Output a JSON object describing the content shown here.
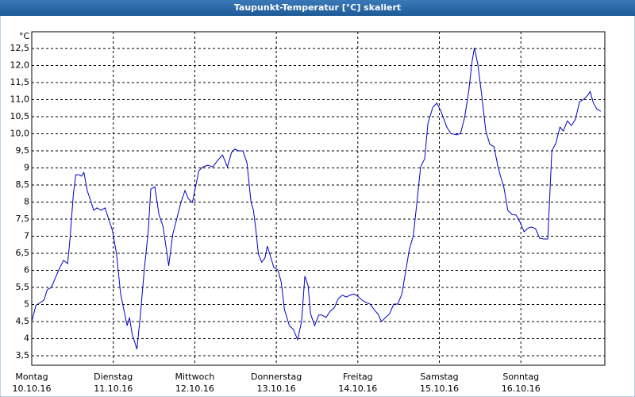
{
  "chart_data": {
    "type": "line",
    "title": "Taupunkt-Temperatur [°C] skaliert",
    "y_unit": "°C",
    "color": "#0000c8",
    "grid": true,
    "xlim": [
      0,
      7.03
    ],
    "ylim": [
      3.22,
      12.99
    ],
    "xticks": [
      {
        "value": 0,
        "label": "Montag",
        "date": "10.10.16"
      },
      {
        "value": 1,
        "label": "Dienstag",
        "date": "11.10.16"
      },
      {
        "value": 2,
        "label": "Mittwoch",
        "date": "12.10.16"
      },
      {
        "value": 3,
        "label": "Donnerstag",
        "date": "13.10.16"
      },
      {
        "value": 4,
        "label": "Freitag",
        "date": "14.10.16"
      },
      {
        "value": 5,
        "label": "Samstag",
        "date": "15.10.16"
      },
      {
        "value": 6,
        "label": "Sonntag",
        "date": "16.10.16"
      }
    ],
    "yticks": [
      {
        "value": 3.5,
        "label": "3,5"
      },
      4,
      {
        "value": 4.5,
        "label": "4,5"
      },
      5,
      {
        "value": 5.5,
        "label": "5,5"
      },
      6,
      {
        "value": 6.5,
        "label": "6,5"
      },
      7,
      {
        "value": 7.5,
        "label": "7,5"
      },
      8,
      {
        "value": 8.5,
        "label": "8,5"
      },
      9,
      {
        "value": 9.5,
        "label": "9,5"
      },
      {
        "value": 10,
        "label": "10,0"
      },
      {
        "value": 10.5,
        "label": "10,5"
      },
      {
        "value": 11,
        "label": "11,0"
      },
      {
        "value": 11.5,
        "label": "11,5"
      },
      {
        "value": 12,
        "label": "12,0"
      },
      {
        "value": 12.5,
        "label": "12,5"
      }
    ],
    "x": [
      0,
      0.05,
      0.15,
      0.19,
      0.24,
      0.29,
      0.34,
      0.39,
      0.44,
      0.47,
      0.51,
      0.54,
      0.58,
      0.61,
      0.64,
      0.68,
      0.73,
      0.76,
      0.8,
      0.85,
      0.9,
      0.94,
      0.99,
      1.04,
      1.09,
      1.14,
      1.17,
      1.2,
      1.23,
      1.29,
      1.33,
      1.38,
      1.43,
      1.46,
      1.51,
      1.56,
      1.61,
      1.66,
      1.68,
      1.73,
      1.78,
      1.83,
      1.88,
      1.92,
      1.97,
      2.01,
      2.05,
      2.1,
      2.16,
      2.22,
      2.28,
      2.34,
      2.4,
      2.45,
      2.49,
      2.54,
      2.59,
      2.64,
      2.69,
      2.72,
      2.75,
      2.78,
      2.82,
      2.86,
      2.89,
      2.92,
      2.97,
      3.02,
      3.06,
      3.1,
      3.16,
      3.21,
      3.26,
      3.31,
      3.35,
      3.39,
      3.42,
      3.47,
      3.52,
      3.56,
      3.61,
      3.66,
      3.71,
      3.76,
      3.81,
      3.86,
      3.9,
      3.95,
      4.0,
      4.05,
      4.1,
      4.15,
      4.2,
      4.25,
      4.29,
      4.34,
      4.39,
      4.44,
      4.49,
      4.54,
      4.59,
      4.63,
      4.68,
      4.73,
      4.77,
      4.82,
      4.86,
      4.92,
      4.97,
      5.02,
      5.09,
      5.14,
      5.21,
      5.26,
      5.31,
      5.36,
      5.4,
      5.43,
      5.47,
      5.52,
      5.57,
      5.62,
      5.67,
      5.72,
      5.75,
      5.79,
      5.84,
      5.89,
      5.94,
      5.99,
      6.04,
      6.09,
      6.13,
      6.18,
      6.23,
      6.28,
      6.33,
      6.38,
      6.43,
      6.48,
      6.52,
      6.57,
      6.62,
      6.67,
      6.72,
      6.77,
      6.82,
      6.85,
      6.89,
      6.93,
      6.98
    ],
    "values": [
      4.5,
      4.97,
      5.13,
      5.43,
      5.5,
      5.78,
      6.06,
      6.29,
      6.2,
      6.94,
      8.22,
      8.8,
      8.8,
      8.76,
      8.87,
      8.34,
      7.99,
      7.76,
      7.83,
      7.76,
      7.83,
      7.52,
      7.17,
      6.48,
      5.31,
      4.73,
      4.38,
      4.62,
      4.15,
      3.69,
      4.62,
      6.01,
      7.17,
      8.38,
      8.45,
      7.64,
      7.29,
      6.48,
      6.13,
      7.06,
      7.52,
      7.99,
      8.34,
      8.1,
      7.99,
      8.45,
      8.92,
      9.03,
      9.08,
      9.03,
      9.22,
      9.38,
      9.03,
      9.45,
      9.55,
      9.5,
      9.5,
      9.15,
      7.99,
      7.76,
      7.17,
      6.48,
      6.24,
      6.36,
      6.71,
      6.48,
      6.08,
      6.01,
      5.66,
      4.85,
      4.38,
      4.27,
      3.97,
      4.5,
      5.83,
      5.55,
      4.73,
      4.38,
      4.69,
      4.69,
      4.62,
      4.8,
      4.9,
      5.17,
      5.27,
      5.22,
      5.27,
      5.31,
      5.24,
      5.13,
      5.06,
      5.01,
      4.85,
      4.71,
      4.5,
      4.62,
      4.73,
      5.01,
      5.01,
      5.31,
      6.01,
      6.59,
      7.01,
      8.1,
      9.03,
      9.27,
      10.31,
      10.78,
      10.9,
      10.66,
      10.2,
      10.01,
      9.97,
      10.01,
      10.48,
      11.24,
      12.1,
      12.52,
      12.06,
      11.13,
      10.08,
      9.69,
      9.62,
      9.03,
      8.76,
      8.45,
      7.76,
      7.64,
      7.62,
      7.41,
      7.13,
      7.24,
      7.27,
      7.22,
      6.94,
      6.92,
      6.92,
      9.5,
      9.73,
      10.2,
      10.08,
      10.38,
      10.24,
      10.43,
      10.94,
      11.01,
      11.13,
      11.24,
      10.9,
      10.73,
      10.66
    ]
  }
}
